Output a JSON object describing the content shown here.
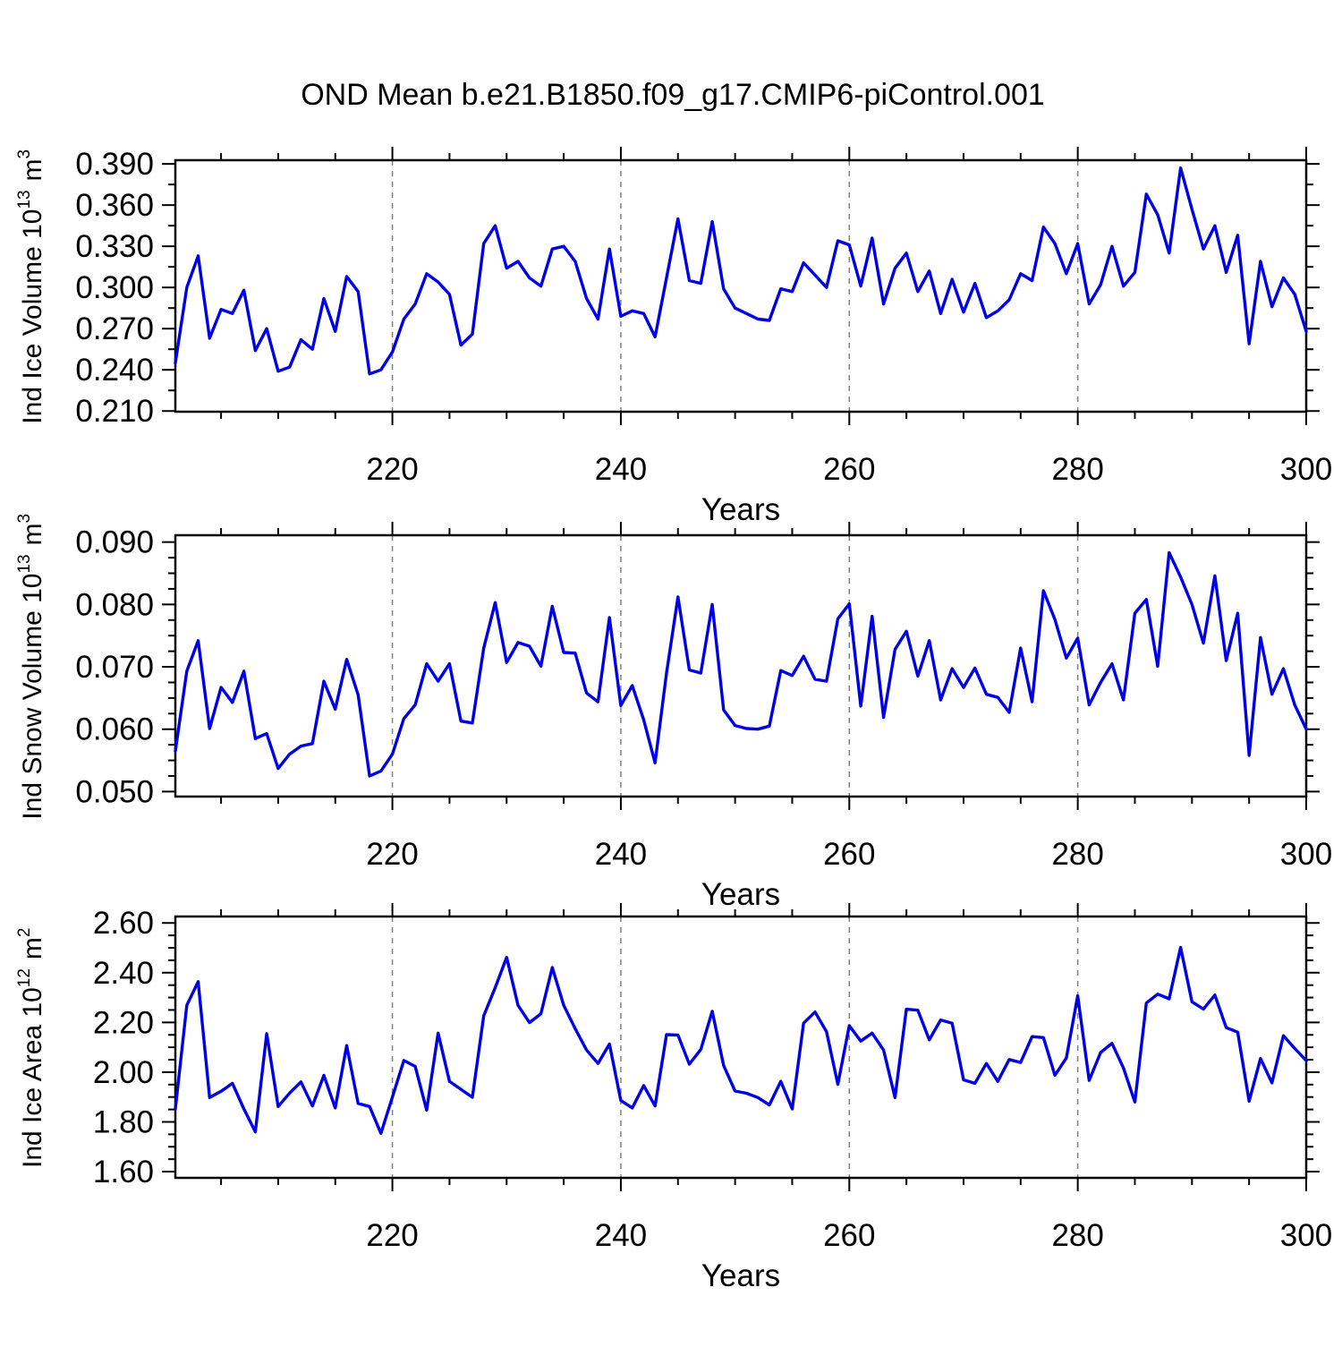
{
  "title": "OND Mean b.e21.B1850.f09_g17.CMIP6-piControl.001",
  "line_color": "#0000e6",
  "gridline_color": "#808080",
  "frame_color": "#000000",
  "xlabel": "Years",
  "xtick_labels": [
    "220",
    "240",
    "260",
    "280",
    "300"
  ],
  "xtick_values": [
    220,
    240,
    260,
    280,
    300
  ],
  "x_minor_step": 5,
  "gridlines_at": [
    220,
    240,
    260,
    280
  ],
  "chart_data": [
    {
      "type": "line",
      "name": "ind-ice-volume",
      "ylabel_parts": [
        {
          "t": "Ind Ice Volume 10"
        },
        {
          "t": "13",
          "sup": true
        },
        {
          "t": " m"
        },
        {
          "t": "3",
          "sup": true
        }
      ],
      "ylabel_plain": "Ind Ice Volume 10^13 m^3",
      "xlabel": "Years",
      "x_start": 201,
      "x_step": 1,
      "xlim": [
        201,
        300
      ],
      "ylim": [
        0.2095,
        0.3927
      ],
      "ytick_values": [
        0.21,
        0.24,
        0.27,
        0.3,
        0.33,
        0.36,
        0.39
      ],
      "ytick_labels": [
        "0.210",
        "0.240",
        "0.270",
        "0.300",
        "0.330",
        "0.360",
        "0.390"
      ],
      "y_minor_step": 0.015,
      "values": [
        0.245,
        0.3,
        0.323,
        0.263,
        0.284,
        0.281,
        0.298,
        0.254,
        0.27,
        0.239,
        0.242,
        0.262,
        0.255,
        0.292,
        0.268,
        0.308,
        0.297,
        0.237,
        0.24,
        0.253,
        0.277,
        0.288,
        0.31,
        0.304,
        0.295,
        0.258,
        0.266,
        0.332,
        0.345,
        0.314,
        0.319,
        0.307,
        0.301,
        0.328,
        0.33,
        0.319,
        0.292,
        0.277,
        0.328,
        0.279,
        0.283,
        0.281,
        0.264,
        0.307,
        0.35,
        0.305,
        0.303,
        0.348,
        0.299,
        0.285,
        0.281,
        0.277,
        0.276,
        0.299,
        0.297,
        0.318,
        0.309,
        0.3,
        0.334,
        0.331,
        0.301,
        0.336,
        0.288,
        0.314,
        0.325,
        0.297,
        0.312,
        0.281,
        0.306,
        0.282,
        0.303,
        0.278,
        0.283,
        0.291,
        0.31,
        0.305,
        0.344,
        0.332,
        0.31,
        0.332,
        0.288,
        0.302,
        0.33,
        0.301,
        0.311,
        0.368,
        0.353,
        0.325,
        0.387,
        0.357,
        0.328,
        0.345,
        0.311,
        0.338,
        0.259,
        0.319,
        0.286,
        0.307,
        0.295,
        0.268
      ]
    },
    {
      "type": "line",
      "name": "ind-snow-volume",
      "ylabel_parts": [
        {
          "t": "Ind Snow Volume 10"
        },
        {
          "t": "13",
          "sup": true
        },
        {
          "t": " m"
        },
        {
          "t": "3",
          "sup": true
        }
      ],
      "ylabel_plain": "Ind Snow Volume 10^13 m^3",
      "xlabel": "Years",
      "x_start": 201,
      "x_step": 1,
      "xlim": [
        201,
        300
      ],
      "ylim": [
        0.0492,
        0.0911
      ],
      "ytick_values": [
        0.05,
        0.06,
        0.07,
        0.08,
        0.09
      ],
      "ytick_labels": [
        "0.050",
        "0.060",
        "0.070",
        "0.080",
        "0.090"
      ],
      "y_minor_step": 0.0025,
      "values": [
        0.0565,
        0.0693,
        0.0742,
        0.0601,
        0.0667,
        0.0643,
        0.0693,
        0.0585,
        0.0593,
        0.0537,
        0.056,
        0.0573,
        0.0577,
        0.0677,
        0.0632,
        0.0712,
        0.0655,
        0.0525,
        0.0533,
        0.056,
        0.0617,
        0.0639,
        0.0705,
        0.0677,
        0.0705,
        0.0613,
        0.061,
        0.073,
        0.0803,
        0.0707,
        0.0739,
        0.0733,
        0.0701,
        0.0797,
        0.0723,
        0.0722,
        0.0658,
        0.0644,
        0.0779,
        0.0638,
        0.067,
        0.0615,
        0.0546,
        0.069,
        0.0812,
        0.0695,
        0.069,
        0.08,
        0.0631,
        0.0606,
        0.0601,
        0.06,
        0.0605,
        0.0694,
        0.0686,
        0.0717,
        0.068,
        0.0677,
        0.0777,
        0.0801,
        0.0637,
        0.0781,
        0.0619,
        0.0728,
        0.0757,
        0.0685,
        0.0742,
        0.0647,
        0.0697,
        0.0667,
        0.0698,
        0.0656,
        0.0651,
        0.0627,
        0.073,
        0.0644,
        0.0822,
        0.0776,
        0.0714,
        0.0746,
        0.0639,
        0.0675,
        0.0705,
        0.0647,
        0.0786,
        0.0808,
        0.0701,
        0.0883,
        0.0844,
        0.08,
        0.0738,
        0.0846,
        0.071,
        0.0786,
        0.0558,
        0.0747,
        0.0656,
        0.0697,
        0.0639,
        0.06
      ]
    },
    {
      "type": "line",
      "name": "ind-ice-area",
      "ylabel_parts": [
        {
          "t": "Ind Ice Area 10"
        },
        {
          "t": "12",
          "sup": true
        },
        {
          "t": " m"
        },
        {
          "t": "2",
          "sup": true
        }
      ],
      "ylabel_plain": "Ind Ice Area 10^12 m^2",
      "xlabel": "Years",
      "x_start": 201,
      "x_step": 1,
      "xlim": [
        201,
        300
      ],
      "ylim": [
        1.575,
        2.626
      ],
      "ytick_values": [
        1.6,
        1.8,
        2.0,
        2.2,
        2.4,
        2.6
      ],
      "ytick_labels": [
        "1.60",
        "1.80",
        "2.00",
        "2.20",
        "2.40",
        "2.60"
      ],
      "y_minor_step": 0.05,
      "values": [
        1.852,
        2.269,
        2.364,
        1.898,
        1.923,
        1.955,
        1.852,
        1.76,
        2.155,
        1.862,
        1.916,
        1.961,
        1.864,
        1.987,
        1.856,
        2.107,
        1.874,
        1.862,
        1.754,
        1.9,
        2.047,
        2.023,
        1.847,
        2.157,
        1.963,
        1.931,
        1.899,
        2.227,
        2.34,
        2.462,
        2.269,
        2.199,
        2.235,
        2.421,
        2.269,
        2.175,
        2.089,
        2.035,
        2.113,
        1.886,
        1.856,
        1.946,
        1.864,
        2.151,
        2.149,
        2.032,
        2.091,
        2.245,
        2.027,
        1.924,
        1.915,
        1.898,
        1.868,
        1.963,
        1.852,
        2.197,
        2.242,
        2.163,
        1.951,
        2.187,
        2.125,
        2.157,
        2.089,
        1.898,
        2.253,
        2.249,
        2.13,
        2.21,
        2.197,
        1.969,
        1.955,
        2.035,
        1.963,
        2.051,
        2.039,
        2.143,
        2.139,
        1.987,
        2.057,
        2.307,
        1.967,
        2.079,
        2.116,
        2.017,
        1.88,
        2.278,
        2.314,
        2.295,
        2.502,
        2.283,
        2.254,
        2.31,
        2.179,
        2.161,
        1.883,
        2.055,
        1.957,
        2.147,
        2.095,
        2.047
      ]
    }
  ]
}
